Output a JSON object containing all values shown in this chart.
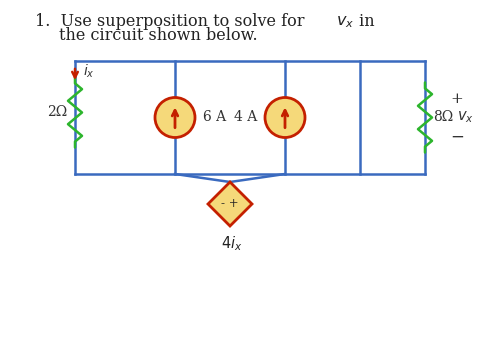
{
  "bg_color": "#ffffff",
  "wire_color": "#3a6abf",
  "resistor_color": "#2db52d",
  "cs_fill": "#f5d97a",
  "cs_border": "#c42000",
  "vs_fill": "#f5d97a",
  "vs_border": "#c42000",
  "arrow_color": "#c42000",
  "text_color": "#333333",
  "resistor_2_label": "2Ω",
  "resistor_8_label": "8Ω",
  "cs1_label": "6 A",
  "cs2_label": "4 A"
}
